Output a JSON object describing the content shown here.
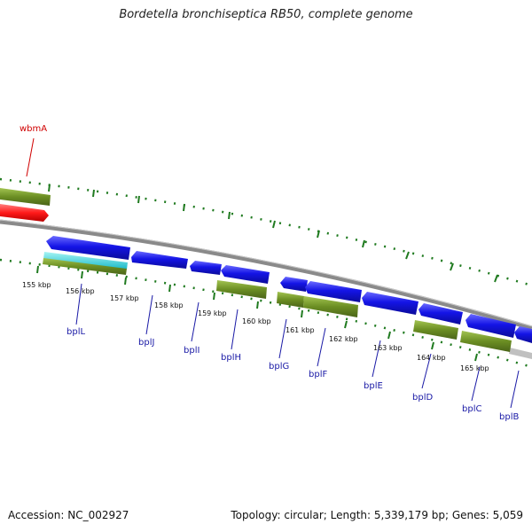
{
  "title": "Bordetella bronchiseptica RB50, complete genome",
  "footer": {
    "accession": "Accession: NC_002927",
    "summary": "Topology: circular; Length: 5,339,179 bp; Genes: 5,059"
  },
  "ruler_labels": [
    "155 kbp",
    "156 kbp",
    "157 kbp",
    "158 kbp",
    "159 kbp",
    "160 kbp",
    "161 kbp",
    "162 kbp",
    "163 kbp",
    "164 kbp",
    "165 kbp"
  ],
  "genes": [
    {
      "name": "wbmA",
      "color": "#d00000"
    },
    {
      "name": "bplL",
      "color": "#1a1aa6"
    },
    {
      "name": "bplJ",
      "color": "#1a1aa6"
    },
    {
      "name": "bplI",
      "color": "#1a1aa6"
    },
    {
      "name": "bplH",
      "color": "#1a1aa6"
    },
    {
      "name": "bplG",
      "color": "#1a1aa6"
    },
    {
      "name": "bplF",
      "color": "#1a1aa6"
    },
    {
      "name": "bplE",
      "color": "#1a1aa6"
    },
    {
      "name": "bplD",
      "color": "#1a1aa6"
    },
    {
      "name": "bplC",
      "color": "#1a1aa6"
    },
    {
      "name": "bplB",
      "color": "#1a1aa6"
    }
  ],
  "colors": {
    "cds": "#1414e6",
    "rna": "#6b8e23",
    "highlight": "#ff1a1a",
    "cyan": "#22d3d3",
    "backbone": "#888888",
    "ticks": "#1f7a1f"
  }
}
